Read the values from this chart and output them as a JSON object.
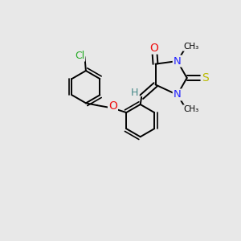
{
  "bg_color": "#e8e8e8",
  "bond_color": "#000000",
  "bond_width": 1.4,
  "atom_colors": {
    "C": "#000000",
    "N": "#2222ff",
    "O": "#ee1111",
    "S": "#bbbb00",
    "Cl": "#22aa22",
    "H": "#448888"
  },
  "font_size": 8.5
}
